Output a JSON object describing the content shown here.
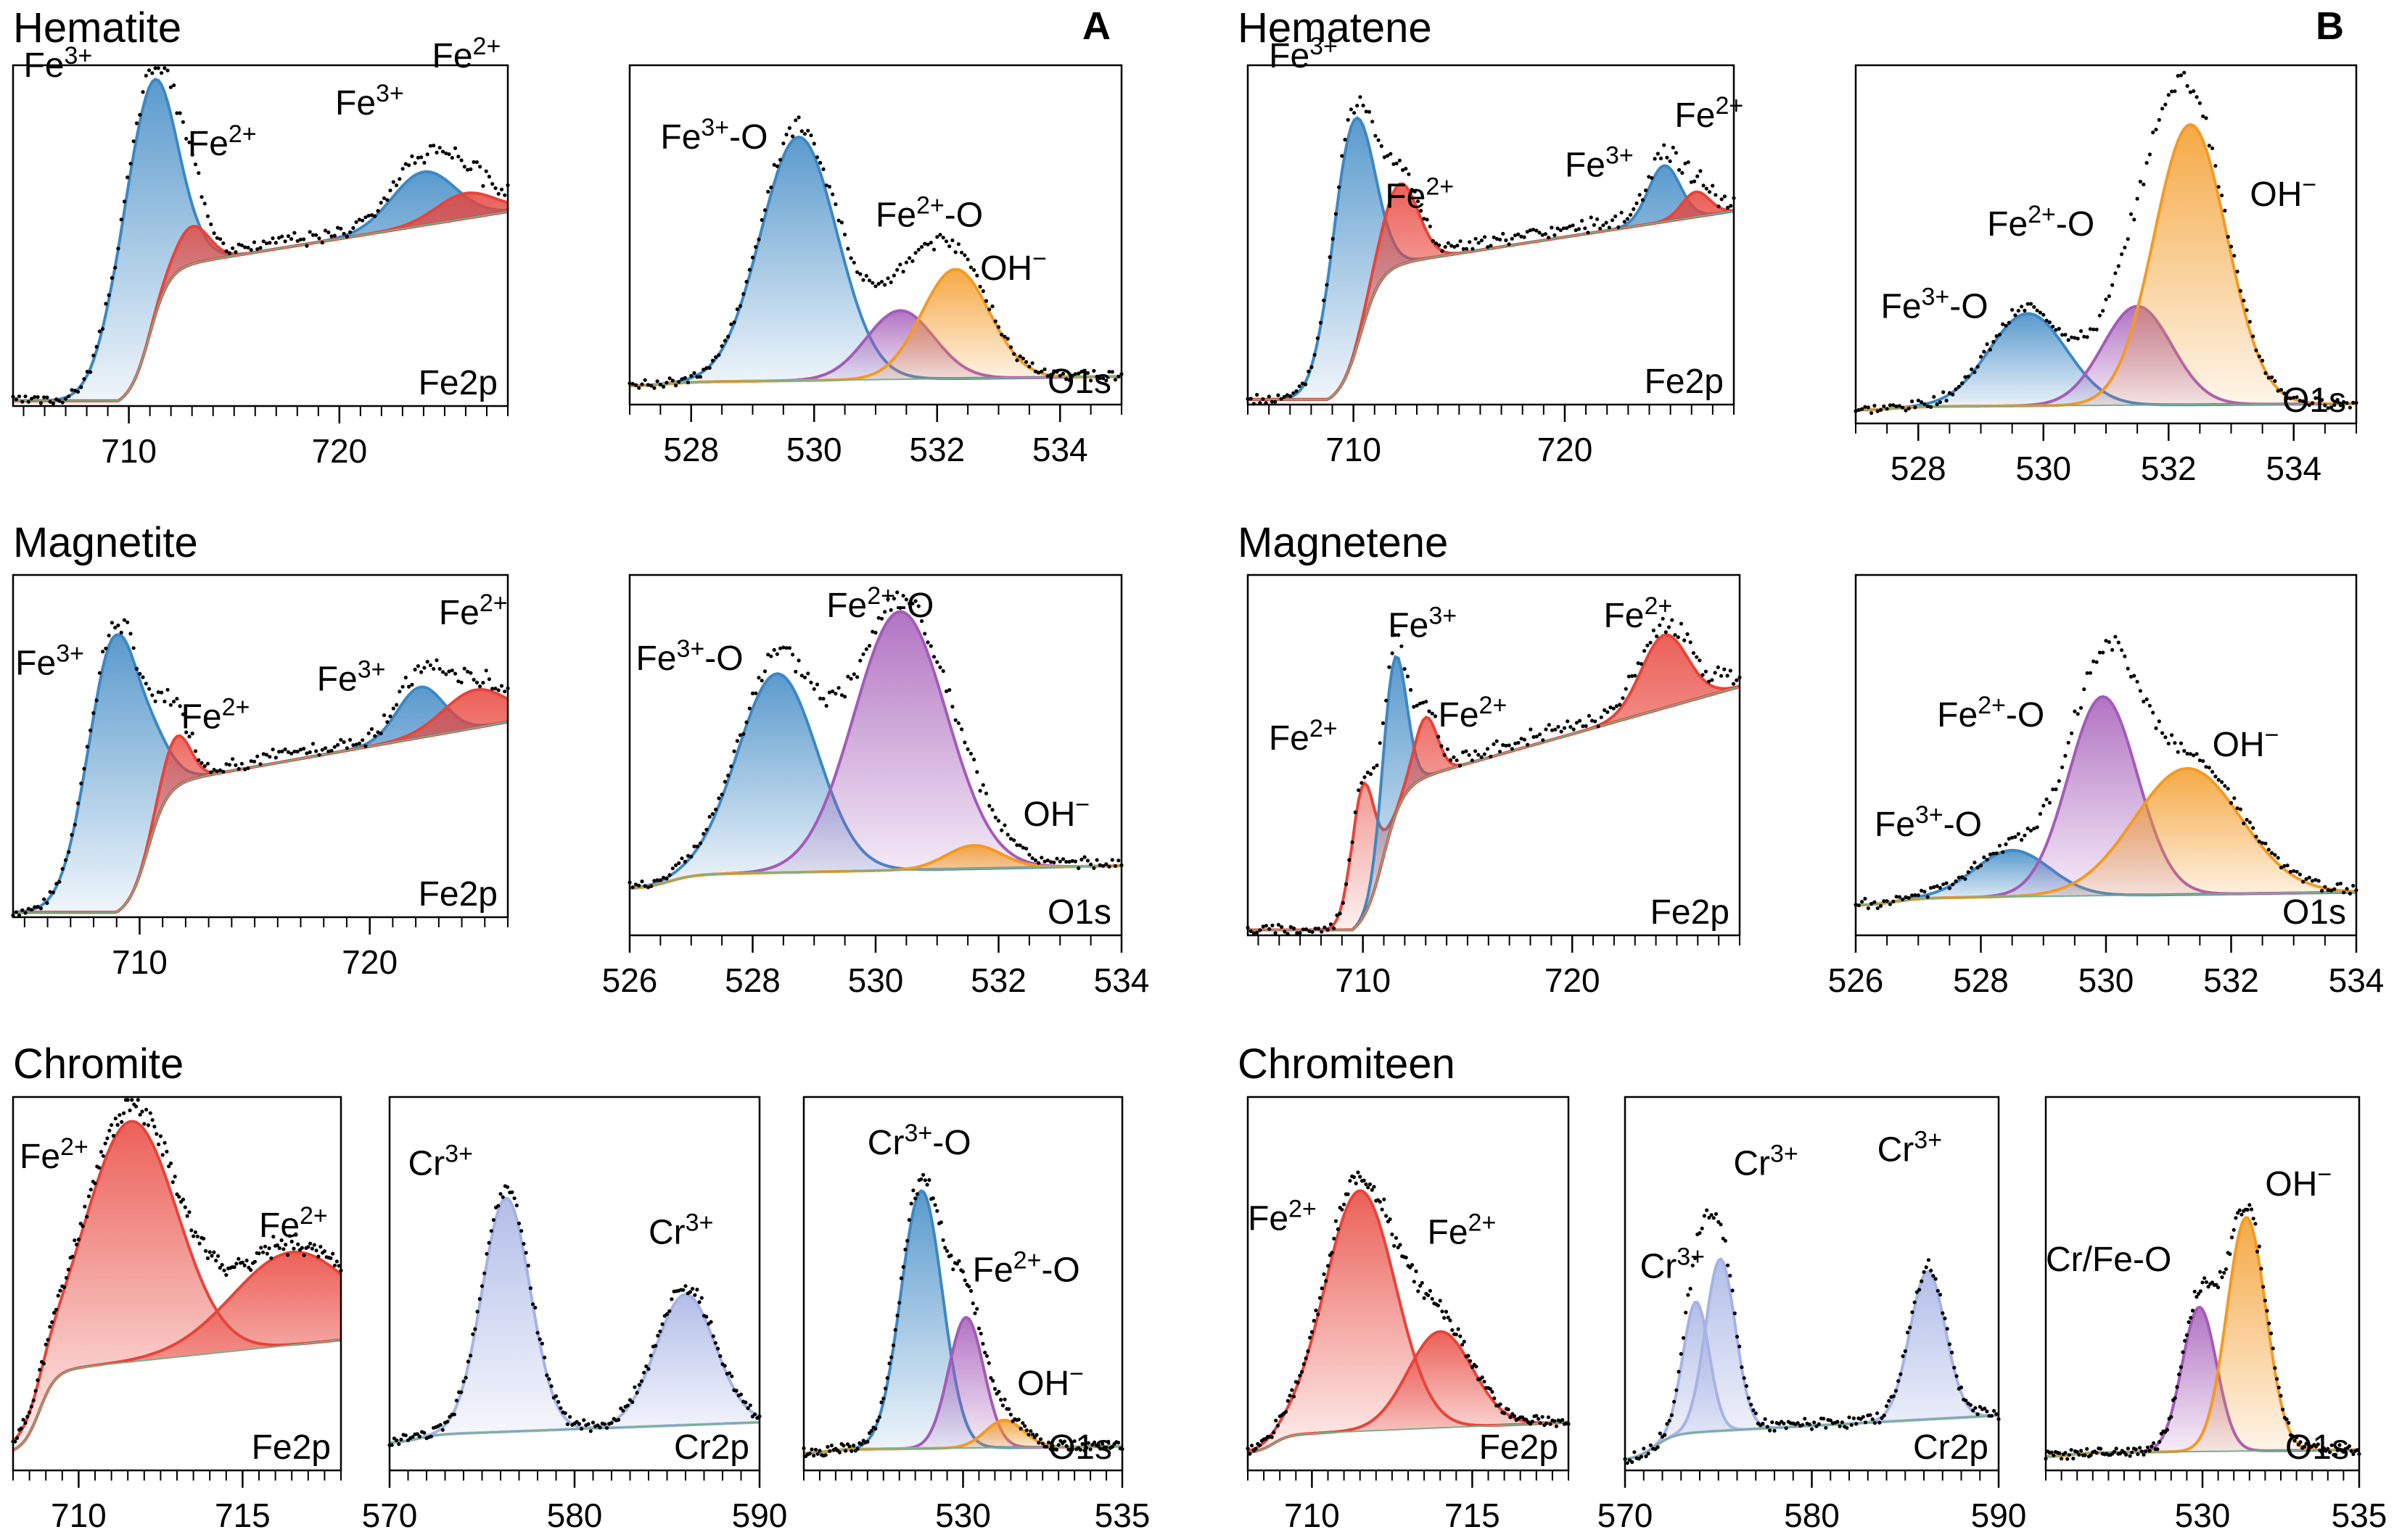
{
  "figure": {
    "colors": {
      "blue": "#3d88c4",
      "red": "#e8443a",
      "purple": "#a45bb8",
      "orange": "#f39a24",
      "lavender": "#a6b3e4",
      "green": "#76b08a",
      "frame": "#000000",
      "data_dots": "#000000"
    },
    "section_titles": {
      "hematite": "Hematite",
      "hematene": "Hematene",
      "magnetite": "Magnetite",
      "magnetene": "Magnetene",
      "chromite": "Chromite",
      "chromiteen": "Chromiteen"
    },
    "panel_letters": {
      "a": "A",
      "b": "B"
    }
  },
  "chart_data": [
    {
      "id": "hematite-fe2p",
      "type": "area",
      "region_label": "Fe2p",
      "xlim": [
        704.5,
        728
      ],
      "xticks": [
        "710",
        "720"
      ],
      "peaks": [
        {
          "label": "Fe3+",
          "sup": "3+",
          "x": 710.8,
          "y": 0.8,
          "w": 1.3,
          "color": "blue"
        },
        {
          "label": "Fe2+",
          "sup": "2+",
          "x": 713.0,
          "y": 0.12,
          "w": 0.8,
          "color": "red"
        },
        {
          "label": "Fe3+",
          "sup": "3+",
          "x": 724.0,
          "y": 0.17,
          "w": 1.5,
          "color": "blue"
        },
        {
          "label": "Fe2+",
          "sup": "2+",
          "x": 726.0,
          "y": 0.08,
          "w": 1.4,
          "color": "red"
        }
      ],
      "background": {
        "lo": 0.0,
        "mid": 0.42,
        "hi": 0.62,
        "x0": 709.5,
        "x1": 728
      },
      "labels": [
        {
          "text": "Fe",
          "sup": "3+",
          "x": 705.0,
          "y": 1.05
        },
        {
          "text": "Fe",
          "sup": "2+",
          "x": 712.8,
          "y": 0.8
        },
        {
          "text": "Fe",
          "sup": "3+",
          "x": 719.8,
          "y": 0.93
        },
        {
          "text": "Fe",
          "sup": "2+",
          "x": 724.4,
          "y": 1.08
        }
      ]
    },
    {
      "id": "hematite-o1s",
      "type": "area",
      "region_label": "O1s",
      "xlim": [
        527,
        535
      ],
      "xticks": [
        "528",
        "530",
        "532",
        "534"
      ],
      "peaks": [
        {
          "label": "Fe3+-O",
          "sup": "3+",
          "x": 529.75,
          "y": 0.78,
          "w": 0.62,
          "color": "blue"
        },
        {
          "label": "Fe2+-O",
          "sup": "2+",
          "x": 531.4,
          "y": 0.22,
          "w": 0.55,
          "color": "purple"
        },
        {
          "label": "OH-",
          "sup": "−",
          "x": 532.3,
          "y": 0.35,
          "w": 0.55,
          "color": "orange"
        }
      ],
      "background": {
        "lo": 0.06,
        "mid": 0.07,
        "hi": 0.09,
        "x0": 527,
        "x1": 535
      },
      "labels": [
        {
          "text": "Fe",
          "sup": "3+",
          "tail": "-O",
          "x": 527.5,
          "y": 0.82
        },
        {
          "text": "Fe",
          "sup": "2+",
          "tail": "-O",
          "x": 531.0,
          "y": 0.57
        },
        {
          "text": "OH",
          "sup": "−",
          "x": 532.7,
          "y": 0.4
        }
      ]
    },
    {
      "id": "hematene-fe2p",
      "type": "area",
      "region_label": "Fe2p",
      "xlim": [
        705,
        728
      ],
      "xticks": [
        "710",
        "720"
      ],
      "peaks": [
        {
          "label": "Fe3+",
          "sup": "3+",
          "x": 709.9,
          "y": 0.76,
          "w": 0.95,
          "color": "blue"
        },
        {
          "label": "Fe2+",
          "sup": "2+",
          "x": 712.2,
          "y": 0.26,
          "w": 0.85,
          "color": "red"
        },
        {
          "label": "Fe3+",
          "sup": "3+",
          "x": 724.7,
          "y": 0.18,
          "w": 0.75,
          "color": "blue"
        },
        {
          "label": "Fe2+",
          "sup": "2+",
          "x": 726.2,
          "y": 0.08,
          "w": 0.65,
          "color": "red"
        }
      ],
      "background": {
        "lo": 0.0,
        "mid": 0.42,
        "hi": 0.62,
        "x0": 708.8,
        "x1": 728
      },
      "labels": [
        {
          "text": "Fe",
          "sup": "3+",
          "x": 706.0,
          "y": 1.08
        },
        {
          "text": "Fe",
          "sup": "2+",
          "x": 711.5,
          "y": 0.63
        },
        {
          "text": "Fe",
          "sup": "3+",
          "x": 720.0,
          "y": 0.73
        },
        {
          "text": "Fe",
          "sup": "2+",
          "x": 725.2,
          "y": 0.89
        }
      ]
    },
    {
      "id": "hematene-o1s",
      "type": "area",
      "region_label": "O1s",
      "xlim": [
        527,
        535
      ],
      "xticks": [
        "528",
        "530",
        "532",
        "534"
      ],
      "peaks": [
        {
          "label": "Fe3+-O",
          "sup": "3+",
          "x": 529.75,
          "y": 0.28,
          "w": 0.62,
          "color": "blue"
        },
        {
          "label": "Fe2+-O",
          "sup": "2+",
          "x": 531.5,
          "y": 0.3,
          "w": 0.55,
          "color": "purple"
        },
        {
          "label": "OH-",
          "sup": "−",
          "x": 532.35,
          "y": 0.85,
          "w": 0.58,
          "color": "orange"
        }
      ],
      "background": {
        "lo": 0.04,
        "mid": 0.05,
        "hi": 0.06,
        "x0": 527,
        "x1": 535
      },
      "labels": [
        {
          "text": "Fe",
          "sup": "3+",
          "tail": "-O",
          "x": 527.4,
          "y": 0.32
        },
        {
          "text": "Fe",
          "sup": "2+",
          "tail": "-O",
          "x": 529.1,
          "y": 0.57
        },
        {
          "text": "OH",
          "sup": "−",
          "x": 533.3,
          "y": 0.66
        }
      ]
    },
    {
      "id": "magnetite-fe2p",
      "type": "area",
      "region_label": "Fe2p",
      "xlim": [
        704.5,
        726
      ],
      "xticks": [
        "710",
        "720"
      ],
      "peaks": [
        {
          "label": "Fe3+",
          "sup": "3+",
          "x": 709.0,
          "y": 0.88,
          "w": 1.2,
          "color": "blue"
        },
        {
          "label": "Fe2+",
          "sup": "2+",
          "x": 711.6,
          "y": 0.16,
          "w": 0.6,
          "color": "red"
        },
        {
          "label": "Fe3+",
          "sup": "3+",
          "x": 722.2,
          "y": 0.16,
          "w": 1.0,
          "color": "blue"
        },
        {
          "label": "Fe2+",
          "sup": "2+",
          "x": 724.6,
          "y": 0.12,
          "w": 1.4,
          "color": "red"
        }
      ],
      "background": {
        "lo": 0.0,
        "mid": 0.4,
        "hi": 0.62,
        "x0": 709.0,
        "x1": 726
      },
      "labels": [
        {
          "text": "Fe",
          "sup": "3+",
          "x": 704.6,
          "y": 0.77
        },
        {
          "text": "Fe",
          "sup": "2+",
          "x": 711.8,
          "y": 0.6
        },
        {
          "text": "Fe",
          "sup": "3+",
          "x": 717.7,
          "y": 0.72
        },
        {
          "text": "Fe",
          "sup": "2+",
          "x": 723.0,
          "y": 0.93
        }
      ]
    },
    {
      "id": "magnetite-o1s",
      "type": "area",
      "region_label": "O1s",
      "xlim": [
        526,
        534
      ],
      "xticks": [
        "526",
        "528",
        "530",
        "532",
        "534"
      ],
      "peaks": [
        {
          "label": "Fe3+-O",
          "sup": "3+",
          "x": 528.4,
          "y": 0.6,
          "w": 0.65,
          "color": "blue"
        },
        {
          "label": "Fe2+-O",
          "sup": "2+",
          "x": 530.4,
          "y": 0.78,
          "w": 0.75,
          "color": "purple"
        },
        {
          "label": "OH-",
          "sup": "−",
          "x": 531.6,
          "y": 0.07,
          "w": 0.45,
          "color": "orange"
        }
      ],
      "background": {
        "lo": 0.14,
        "mid": 0.18,
        "hi": 0.21,
        "x0": 526,
        "x1": 534
      },
      "labels": [
        {
          "text": "Fe",
          "sup": "3+",
          "tail": "-O",
          "x": 526.1,
          "y": 0.8
        },
        {
          "text": "Fe",
          "sup": "2+",
          "tail": "-O",
          "x": 529.2,
          "y": 0.96
        },
        {
          "text": "OH",
          "sup": "−",
          "x": 532.4,
          "y": 0.33
        }
      ]
    },
    {
      "id": "magnetene-fe2p",
      "type": "area",
      "region_label": "Fe2p",
      "xlim": [
        704.5,
        728
      ],
      "xticks": [
        "710",
        "720"
      ],
      "peaks": [
        {
          "label": "Fe2+",
          "sup": "2+",
          "x": 710.0,
          "y": 0.4,
          "w": 0.55,
          "color": "red"
        },
        {
          "label": "Fe3+",
          "sup": "3+",
          "x": 711.5,
          "y": 0.48,
          "w": 0.55,
          "color": "blue"
        },
        {
          "label": "Fe2+",
          "sup": "2+",
          "x": 713.0,
          "y": 0.18,
          "w": 0.55,
          "color": "red"
        },
        {
          "label": "Fe2+",
          "sup": "2+",
          "x": 724.4,
          "y": 0.22,
          "w": 1.1,
          "color": "red"
        }
      ],
      "background": {
        "lo": 0.0,
        "mid": 0.42,
        "hi": 0.75,
        "x0": 709.5,
        "x1": 728
      },
      "labels": [
        {
          "text": "Fe",
          "sup": "2+",
          "x": 705.5,
          "y": 0.56
        },
        {
          "text": "Fe",
          "sup": "3+",
          "x": 711.2,
          "y": 0.9
        },
        {
          "text": "Fe",
          "sup": "2+",
          "x": 713.6,
          "y": 0.63
        },
        {
          "text": "Fe",
          "sup": "2+",
          "x": 721.5,
          "y": 0.93
        }
      ]
    },
    {
      "id": "magnetene-o1s",
      "type": "area",
      "region_label": "O1s",
      "xlim": [
        526,
        534
      ],
      "xticks": [
        "526",
        "528",
        "530",
        "532",
        "534"
      ],
      "peaks": [
        {
          "label": "Fe3+-O",
          "sup": "3+",
          "x": 528.5,
          "y": 0.14,
          "w": 0.6,
          "color": "blue"
        },
        {
          "label": "Fe2+-O",
          "sup": "2+",
          "x": 529.95,
          "y": 0.6,
          "w": 0.55,
          "color": "purple"
        },
        {
          "label": "OH-",
          "sup": "−",
          "x": 531.3,
          "y": 0.38,
          "w": 0.85,
          "color": "orange"
        }
      ],
      "background": {
        "lo": 0.09,
        "mid": 0.11,
        "hi": 0.13,
        "x0": 526,
        "x1": 534
      },
      "labels": [
        {
          "text": "Fe",
          "sup": "3+",
          "tail": "-O",
          "x": 526.3,
          "y": 0.3
        },
        {
          "text": "Fe",
          "sup": "2+",
          "tail": "-O",
          "x": 527.3,
          "y": 0.63
        },
        {
          "text": "OH",
          "sup": "−",
          "x": 531.7,
          "y": 0.54
        }
      ]
    },
    {
      "id": "chromite-fe2p",
      "type": "area",
      "region_label": "Fe2p",
      "xlim": [
        708,
        718
      ],
      "xticks": [
        "710",
        "715"
      ],
      "peaks": [
        {
          "label": "Fe2+",
          "sup": "2+",
          "x": 711.6,
          "y": 0.7,
          "w": 1.4,
          "color": "red"
        },
        {
          "label": "Fe2+",
          "sup": "2+",
          "x": 716.5,
          "y": 0.27,
          "w": 1.8,
          "color": "red"
        }
      ],
      "background": {
        "lo": 0.05,
        "mid": 0.28,
        "hi": 0.38,
        "x0": 708,
        "x1": 718
      },
      "labels": [
        {
          "text": "Fe",
          "sup": "2+",
          "x": 708.2,
          "y": 0.88
        },
        {
          "text": "Fe",
          "sup": "2+",
          "x": 715.5,
          "y": 0.68
        }
      ]
    },
    {
      "id": "chromite-cr2p",
      "type": "area",
      "region_label": "Cr2p",
      "xlim": [
        570,
        590
      ],
      "xticks": [
        "570",
        "580",
        "590"
      ],
      "peaks": [
        {
          "label": "Cr3+",
          "sup": "3+",
          "x": 576.3,
          "y": 0.68,
          "w": 1.3,
          "color": "lavender"
        },
        {
          "label": "Cr3+",
          "sup": "3+",
          "x": 586.0,
          "y": 0.38,
          "w": 1.6,
          "color": "lavender"
        }
      ],
      "background": {
        "lo": 0.08,
        "mid": 0.1,
        "hi": 0.14,
        "x0": 570,
        "x1": 590
      },
      "labels": [
        {
          "text": "Cr",
          "sup": "3+",
          "x": 571.0,
          "y": 0.86
        },
        {
          "text": "Cr",
          "sup": "3+",
          "x": 584.0,
          "y": 0.66
        }
      ]
    },
    {
      "id": "chromite-o1s",
      "type": "area",
      "region_label": "O1s",
      "xlim": [
        525,
        535
      ],
      "xticks": [
        "530",
        "535"
      ],
      "peaks": [
        {
          "label": "Cr3+-O",
          "sup": "3+",
          "x": 528.7,
          "y": 0.75,
          "w": 0.65,
          "color": "blue"
        },
        {
          "label": "Fe2+-O",
          "sup": "2+",
          "x": 530.1,
          "y": 0.38,
          "w": 0.55,
          "color": "purple"
        },
        {
          "label": "OH-",
          "sup": "−",
          "x": 531.3,
          "y": 0.08,
          "w": 0.6,
          "color": "orange"
        }
      ],
      "background": {
        "lo": 0.05,
        "mid": 0.06,
        "hi": 0.07,
        "x0": 525,
        "x1": 535
      },
      "labels": [
        {
          "text": "Cr",
          "sup": "3+",
          "tail": "-O",
          "x": 527.0,
          "y": 0.92
        },
        {
          "text": "Fe",
          "sup": "2+",
          "tail": "-O",
          "x": 530.3,
          "y": 0.55
        },
        {
          "text": "OH",
          "sup": "−",
          "x": 531.7,
          "y": 0.22
        }
      ]
    },
    {
      "id": "chromiteen-fe2p",
      "type": "area",
      "region_label": "Fe2p",
      "xlim": [
        708,
        718
      ],
      "xticks": [
        "710",
        "715"
      ],
      "peaks": [
        {
          "label": "Fe2+",
          "sup": "2+",
          "x": 711.5,
          "y": 0.7,
          "w": 1.1,
          "color": "red"
        },
        {
          "label": "Fe2+",
          "sup": "2+",
          "x": 714.0,
          "y": 0.28,
          "w": 1.0,
          "color": "red"
        }
      ],
      "background": {
        "lo": 0.05,
        "mid": 0.1,
        "hi": 0.14,
        "x0": 708,
        "x1": 718
      },
      "labels": [
        {
          "text": "Fe",
          "sup": "2+",
          "x": 708.0,
          "y": 0.7
        },
        {
          "text": "Fe",
          "sup": "2+",
          "x": 713.6,
          "y": 0.66
        }
      ]
    },
    {
      "id": "chromiteen-cr2p",
      "type": "area",
      "region_label": "Cr2p",
      "xlim": [
        570,
        590
      ],
      "xticks": [
        "570",
        "580",
        "590"
      ],
      "peaks": [
        {
          "label": "Cr3+",
          "sup": "3+",
          "x": 573.8,
          "y": 0.38,
          "w": 0.7,
          "color": "lavender"
        },
        {
          "label": "Cr3+",
          "sup": "3+",
          "x": 575.1,
          "y": 0.5,
          "w": 0.8,
          "color": "lavender"
        },
        {
          "label": "Cr3+",
          "sup": "3+",
          "x": 586.2,
          "y": 0.43,
          "w": 0.95,
          "color": "lavender"
        }
      ],
      "background": {
        "lo": 0.03,
        "mid": 0.1,
        "hi": 0.16,
        "x0": 570,
        "x1": 590
      },
      "labels": [
        {
          "text": "Cr",
          "sup": "3+",
          "x": 570.8,
          "y": 0.56
        },
        {
          "text": "Cr",
          "sup": "3+",
          "x": 575.8,
          "y": 0.86
        },
        {
          "text": "Cr",
          "sup": "3+",
          "x": 583.5,
          "y": 0.9
        }
      ]
    },
    {
      "id": "chromiteen-o1s",
      "type": "area",
      "region_label": "O1s",
      "xlim": [
        525,
        535
      ],
      "xticks": [
        "530",
        "535"
      ],
      "peaks": [
        {
          "label": "Cr/Fe-O",
          "sup": "",
          "x": 529.9,
          "y": 0.42,
          "w": 0.55,
          "color": "purple"
        },
        {
          "label": "OH-",
          "sup": "−",
          "x": 531.4,
          "y": 0.68,
          "w": 0.62,
          "color": "orange"
        }
      ],
      "background": {
        "lo": 0.04,
        "mid": 0.05,
        "hi": 0.06,
        "x0": 525,
        "x1": 535
      },
      "labels": [
        {
          "text": "Cr/Fe-O",
          "sup": "",
          "x": 525.0,
          "y": 0.58
        },
        {
          "text": "OH",
          "sup": "−",
          "x": 532.0,
          "y": 0.8
        }
      ]
    }
  ]
}
